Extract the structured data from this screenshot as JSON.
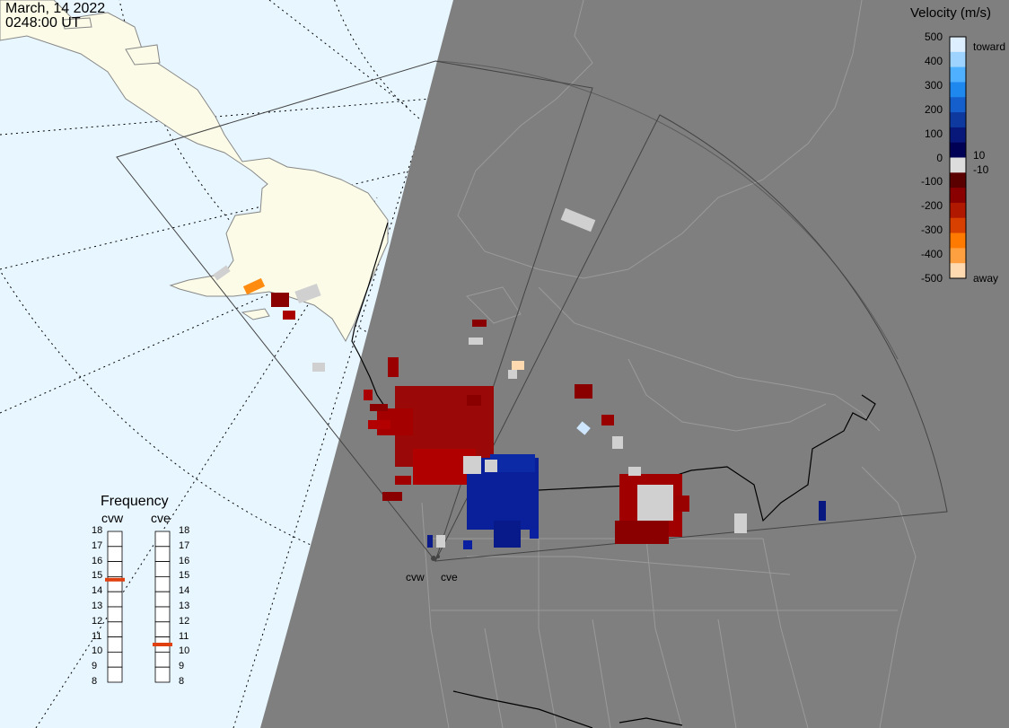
{
  "header": {
    "date": "March, 14 2022",
    "time": "0248:00 UT"
  },
  "velocity_scale": {
    "title": "Velocity (m/s)",
    "ticks": [
      "500",
      "400",
      "300",
      "200",
      "100",
      "0",
      "-100",
      "-200",
      "-300",
      "-400",
      "-500"
    ],
    "label_toward": "toward",
    "label_away": "away",
    "label_pos": "10",
    "label_neg": "-10",
    "colors": [
      "#ddeeff",
      "#9fd3ff",
      "#4fb0ff",
      "#1f88ee",
      "#155fcc",
      "#0e3aa0",
      "#08187a",
      "#000055",
      "#dddddd",
      "#5a0000",
      "#8a0000",
      "#b01800",
      "#d84000",
      "#ff7a00",
      "#ffa040",
      "#ffd9b0"
    ]
  },
  "frequency": {
    "title": "Frequency",
    "radars": [
      {
        "name": "cvw",
        "value": 14.8
      },
      {
        "name": "cve",
        "value": 10.5
      }
    ],
    "scale": [
      "18",
      "17",
      "16",
      "15",
      "14",
      "13",
      "12",
      "11",
      "10",
      "9",
      "8"
    ],
    "marker_color": "#e04010"
  },
  "radar_sites": [
    {
      "name": "cvw"
    },
    {
      "name": "cve"
    }
  ],
  "colors": {
    "ocean": "#e8f6ff",
    "land_day": "#fbfbe8",
    "night": "#7f7f7f",
    "ground_scatter": "#d0d0d0",
    "border": "#000000"
  }
}
